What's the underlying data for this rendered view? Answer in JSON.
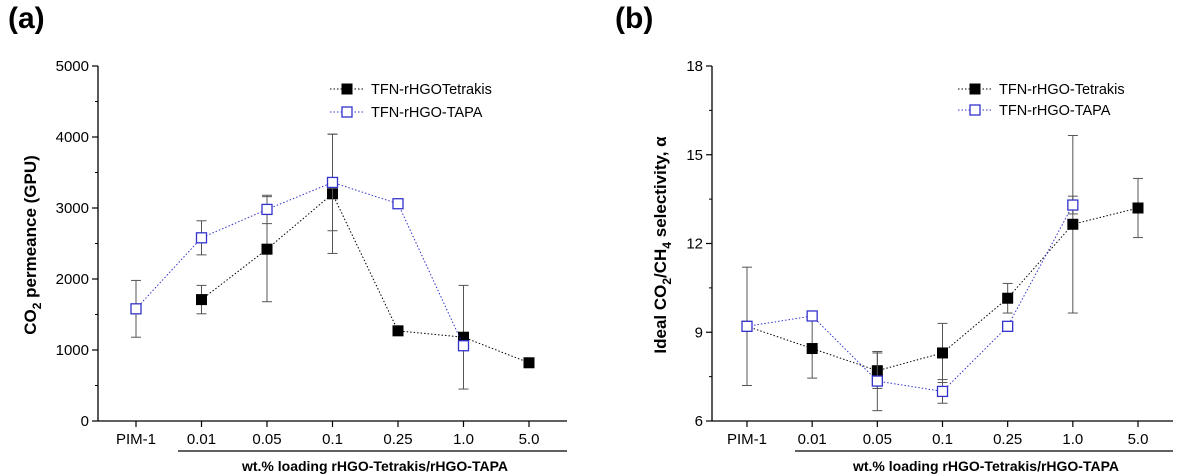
{
  "panels": [
    {
      "panel_label": "(a)",
      "chart_data": {
        "type": "line",
        "categories": [
          "PIM-1",
          "0.01",
          "0.05",
          "0.1",
          "0.25",
          "1.0",
          "5.0"
        ],
        "ylabel": "CO2 permeance (GPU)",
        "ylabel_main": "CO",
        "ylabel_sub": "2",
        "ylabel_rest": " permeance (GPU)",
        "xlabel": "wt.% loading rHGO-Tetrakis/rHGO-TAPA",
        "ylim": [
          0,
          5000
        ],
        "yticks": [
          0,
          1000,
          2000,
          3000,
          4000,
          5000
        ],
        "legend_position": "top-right",
        "grid": false,
        "series": [
          {
            "name": "TFN-rHGOTetrakis",
            "marker": "filled-square",
            "color": "#000000",
            "values": [
              null,
              1710,
              2420,
              3200,
              1270,
              1180,
              820
            ],
            "errors": [
              null,
              200,
              740,
              840,
              40,
              730,
              60
            ]
          },
          {
            "name": "TFN-rHGO-TAPA",
            "marker": "open-square",
            "color": "#3333cc",
            "values": [
              1580,
              2580,
              2980,
              3360,
              3060,
              1060,
              null
            ],
            "errors": [
              400,
              240,
              200,
              680,
              40,
              60,
              null
            ]
          }
        ]
      }
    },
    {
      "panel_label": "(b)",
      "chart_data": {
        "type": "line",
        "categories": [
          "PIM-1",
          "0.01",
          "0.05",
          "0.1",
          "0.25",
          "1.0",
          "5.0"
        ],
        "ylabel": "Ideal CO2/CH4 selectivity, α",
        "ylabel_p1": "Ideal CO",
        "ylabel_s1": "2",
        "ylabel_p2": "/CH",
        "ylabel_s2": "4",
        "ylabel_p3": " selectivity, α",
        "xlabel": "wt.% loading rHGO-Tetrakis/rHGO-TAPA",
        "ylim": [
          6,
          18
        ],
        "yticks": [
          6,
          9,
          12,
          15,
          18
        ],
        "legend_position": "top-right",
        "grid": false,
        "series": [
          {
            "name": "TFN-rHGO-Tetrakis",
            "marker": "filled-square",
            "color": "#000000",
            "values": [
              9.2,
              8.45,
              7.7,
              8.3,
              10.15,
              12.65,
              13.2
            ],
            "errors": [
              2.0,
              1.0,
              0.6,
              1.0,
              0.5,
              3.0,
              1.0
            ]
          },
          {
            "name": "TFN-rHGO-TAPA",
            "marker": "open-square",
            "color": "#3333cc",
            "values": [
              9.2,
              9.55,
              7.35,
              7.0,
              9.2,
              13.3,
              null
            ],
            "errors": [
              null,
              null,
              1.0,
              0.4,
              null,
              0.3,
              null
            ]
          }
        ]
      }
    }
  ]
}
